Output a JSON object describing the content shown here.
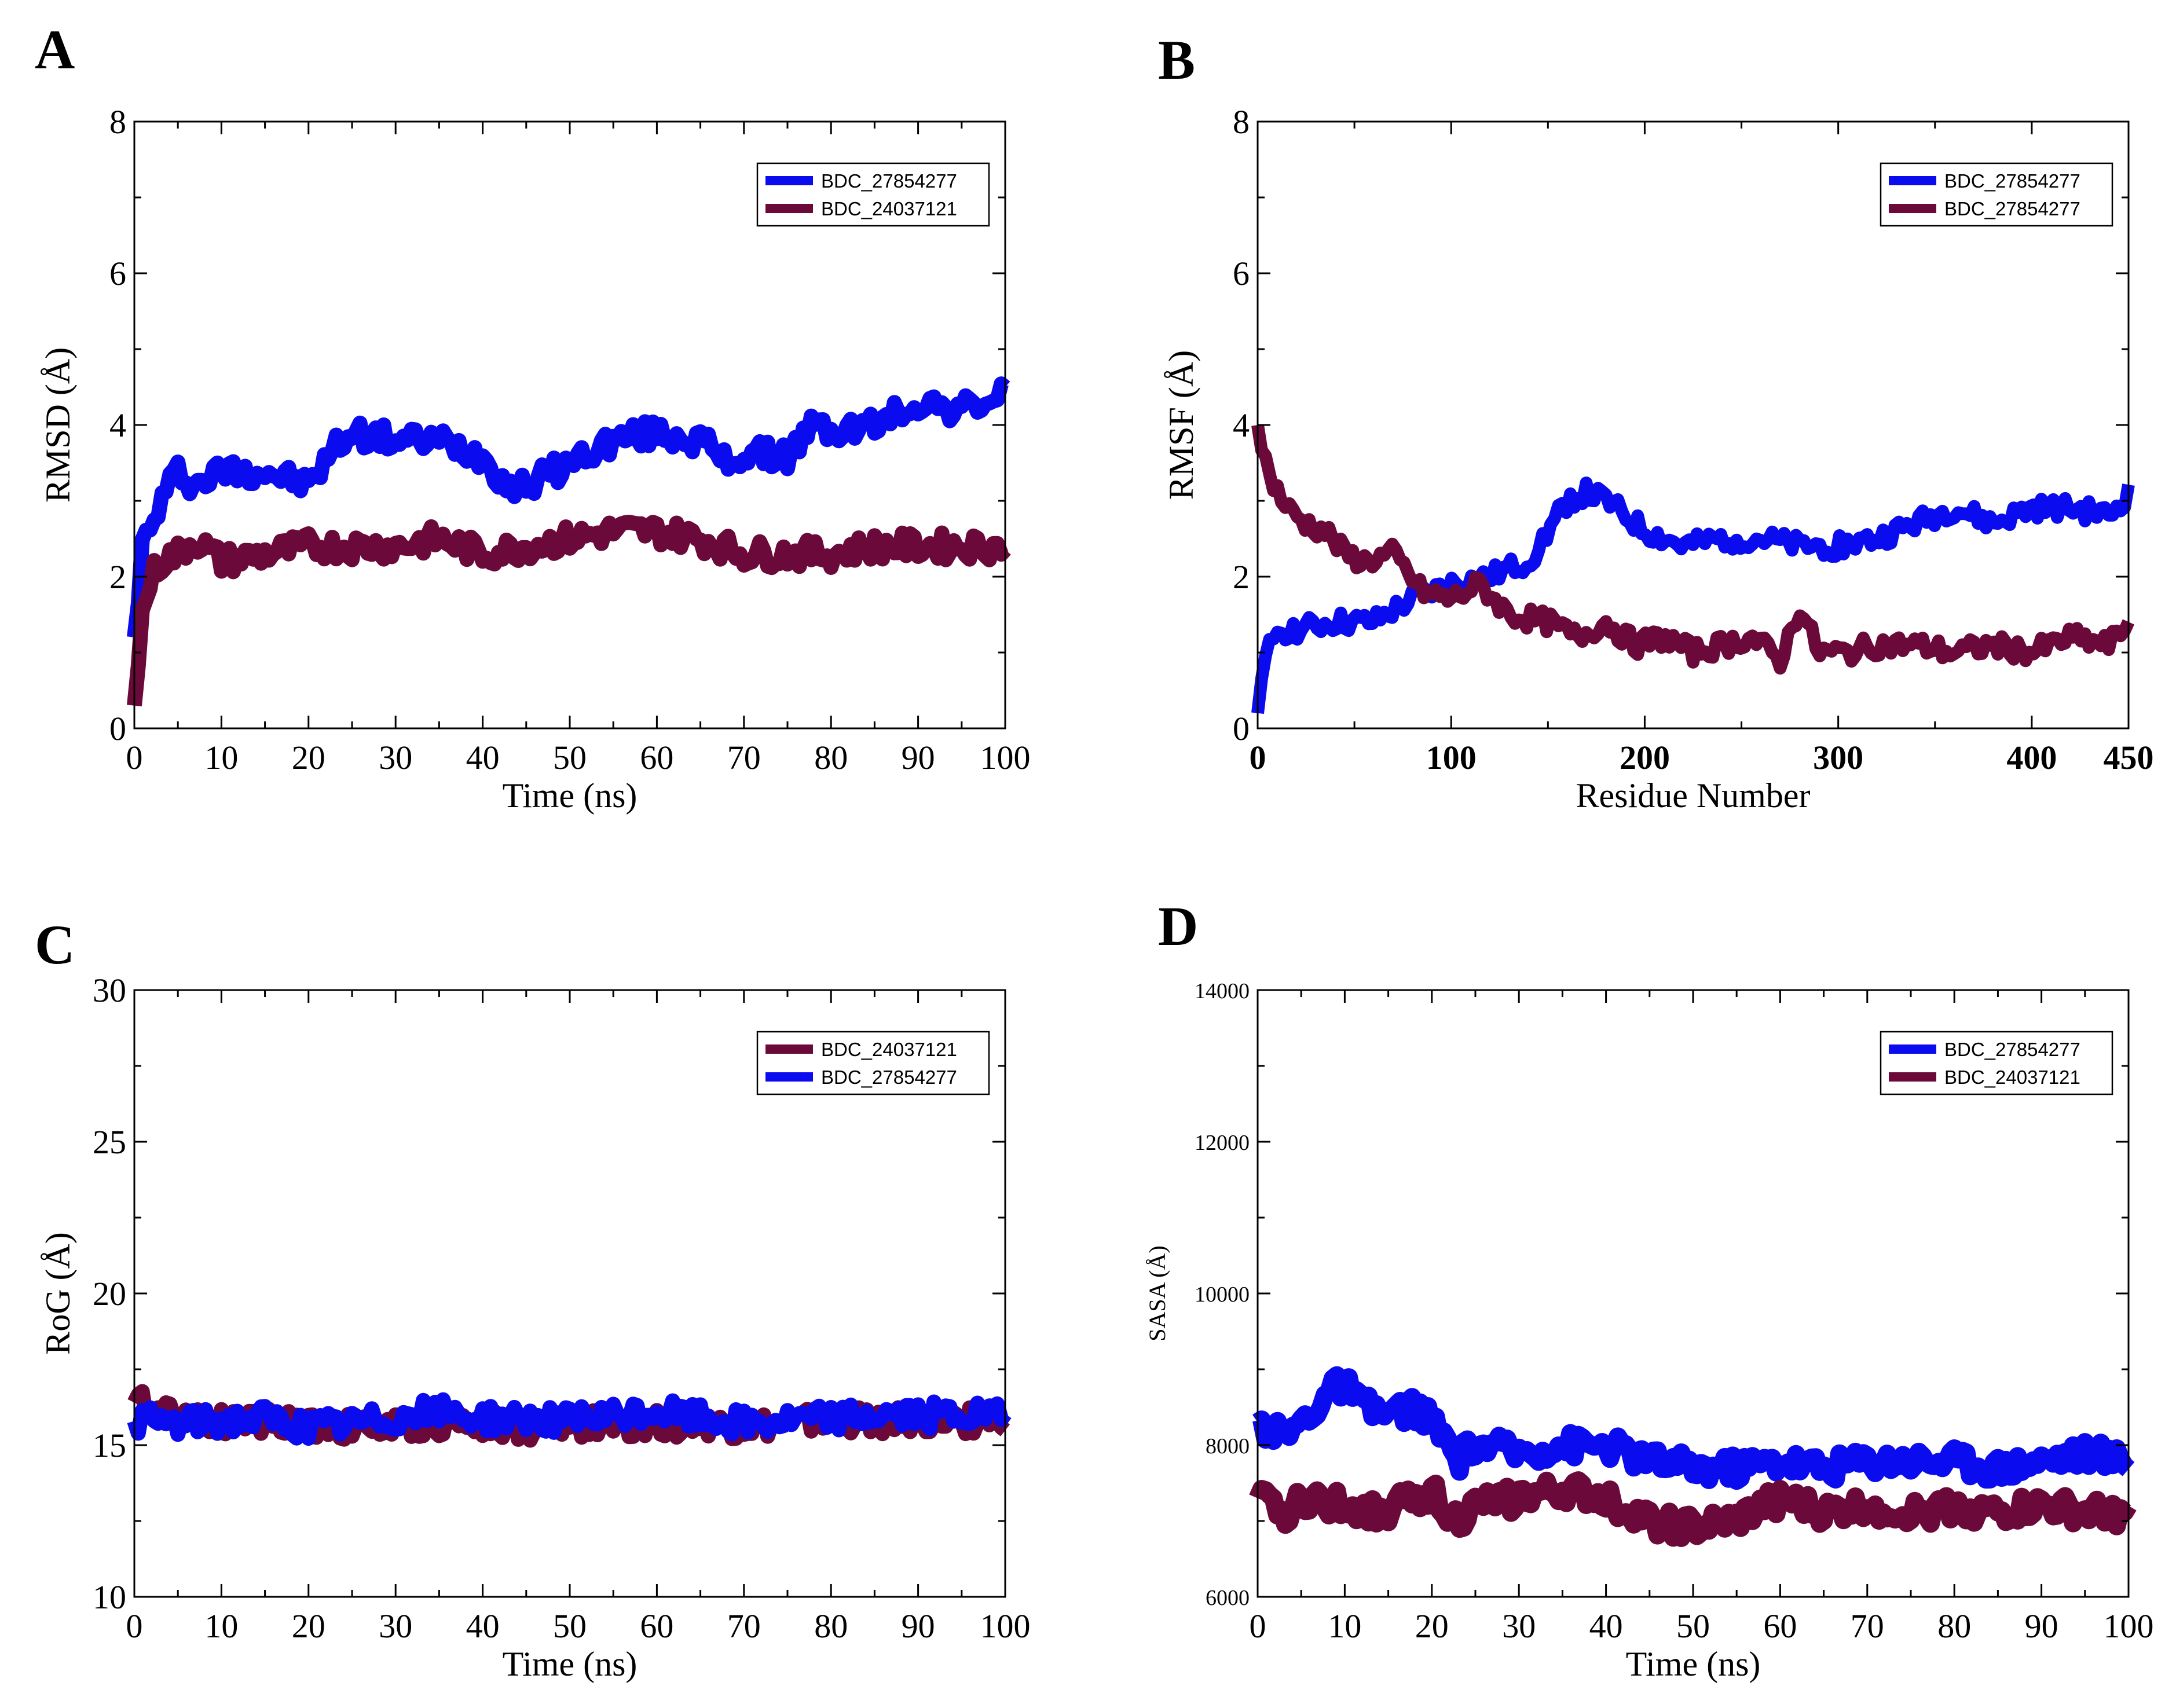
{
  "figure": {
    "letters": [
      "A",
      "B",
      "C",
      "D"
    ]
  },
  "chart_data": [
    {
      "panel": "A",
      "type": "line",
      "xlabel": "Time (ns)",
      "ylabel": "RMSD (Å)",
      "xlim": [
        0,
        100
      ],
      "ylim": [
        0,
        8
      ],
      "x_major_ticks": [
        0,
        10,
        20,
        30,
        40,
        50,
        60,
        70,
        80,
        90,
        100
      ],
      "y_major_ticks": [
        0,
        2,
        4,
        6,
        8
      ],
      "tick_bold": false,
      "legend": "top-right",
      "series": [
        {
          "name": "BDC_27854277",
          "color": "#0b0bf0",
          "x": [
            0,
            1,
            2,
            3,
            5,
            7,
            10,
            15,
            20,
            23,
            25,
            30,
            35,
            40,
            43,
            45,
            50,
            55,
            60,
            65,
            68,
            70,
            75,
            78,
            80,
            85,
            90,
            95,
            100
          ],
          "y": [
            1.2,
            2.5,
            2.6,
            3.0,
            3.4,
            3.2,
            3.4,
            3.4,
            3.2,
            3.7,
            3.9,
            3.8,
            3.8,
            3.6,
            3.2,
            3.2,
            3.5,
            3.8,
            3.9,
            3.8,
            3.5,
            3.6,
            3.6,
            4.0,
            3.9,
            4.0,
            4.3,
            4.2,
            4.4
          ]
        },
        {
          "name": "BDC_24037121",
          "color": "#6b0a3a",
          "x": [
            0,
            1,
            2,
            3,
            5,
            7,
            10,
            15,
            20,
            25,
            30,
            35,
            40,
            45,
            50,
            55,
            60,
            65,
            70,
            75,
            80,
            85,
            90,
            95,
            100
          ],
          "y": [
            0.3,
            1.6,
            2.0,
            2.2,
            2.3,
            2.5,
            2.2,
            2.3,
            2.4,
            2.4,
            2.4,
            2.5,
            2.3,
            2.4,
            2.5,
            2.6,
            2.6,
            2.5,
            2.3,
            2.3,
            2.3,
            2.4,
            2.4,
            2.4,
            2.4
          ]
        }
      ]
    },
    {
      "panel": "B",
      "type": "line",
      "xlabel": "Residue Number",
      "ylabel": "RMSF (Å)",
      "xlim": [
        0,
        450
      ],
      "ylim": [
        0,
        8
      ],
      "x_major_ticks": [
        0,
        100,
        200,
        300,
        400,
        450
      ],
      "y_major_ticks": [
        0,
        2,
        4,
        6,
        8
      ],
      "tick_bold": true,
      "legend": "top-right",
      "series": [
        {
          "name": "BDC_27854277",
          "color": "#0b0bf0",
          "x": [
            0,
            5,
            10,
            20,
            40,
            60,
            80,
            100,
            120,
            140,
            150,
            160,
            170,
            180,
            200,
            220,
            240,
            260,
            280,
            300,
            320,
            340,
            360,
            380,
            400,
            420,
            440,
            450
          ],
          "y": [
            0.2,
            1.0,
            1.3,
            1.3,
            1.4,
            1.4,
            1.7,
            1.9,
            2.0,
            2.2,
            2.6,
            3.0,
            3.1,
            3.0,
            2.6,
            2.4,
            2.5,
            2.5,
            2.4,
            2.4,
            2.5,
            2.7,
            2.9,
            2.7,
            2.9,
            2.9,
            2.8,
            3.1
          ]
        },
        {
          "name": "BDC_27854277",
          "color": "#6b0a3a",
          "x": [
            0,
            5,
            15,
            25,
            35,
            45,
            55,
            70,
            85,
            100,
            115,
            130,
            150,
            165,
            180,
            195,
            210,
            225,
            240,
            255,
            270,
            280,
            290,
            305,
            320,
            340,
            360,
            380,
            400,
            420,
            440,
            450
          ],
          "y": [
            4.0,
            3.4,
            2.9,
            2.7,
            2.6,
            2.3,
            2.2,
            2.3,
            1.8,
            1.7,
            1.9,
            1.5,
            1.4,
            1.2,
            1.4,
            1.1,
            1.2,
            1.0,
            1.1,
            1.2,
            0.9,
            1.6,
            1.0,
            1.0,
            1.1,
            1.1,
            1.0,
            1.1,
            1.0,
            1.2,
            1.1,
            1.4
          ]
        }
      ]
    },
    {
      "panel": "C",
      "type": "line",
      "xlabel": "Time (ns)",
      "ylabel": "RoG (Å)",
      "xlim": [
        0,
        100
      ],
      "ylim": [
        10,
        30
      ],
      "x_major_ticks": [
        0,
        10,
        20,
        30,
        40,
        50,
        60,
        70,
        80,
        90,
        100
      ],
      "y_major_ticks": [
        10,
        15,
        20,
        25,
        30
      ],
      "tick_bold": false,
      "legend": "top-right",
      "series": [
        {
          "name": "BDC_24037121",
          "color": "#6b0a3a",
          "x": [
            0,
            2,
            5,
            10,
            15,
            20,
            25,
            30,
            35,
            40,
            45,
            50,
            55,
            60,
            65,
            70,
            75,
            80,
            85,
            90,
            95,
            100
          ],
          "y": [
            16.4,
            16.3,
            16.1,
            15.8,
            15.8,
            15.7,
            15.6,
            15.6,
            15.7,
            15.7,
            15.6,
            15.7,
            15.7,
            15.7,
            15.7,
            15.6,
            15.7,
            15.8,
            15.8,
            15.8,
            15.8,
            15.9
          ]
        },
        {
          "name": "BDC_27854277",
          "color": "#0b0bf0",
          "x": [
            0,
            2,
            5,
            10,
            15,
            20,
            25,
            30,
            35,
            40,
            45,
            50,
            55,
            60,
            65,
            70,
            75,
            80,
            85,
            90,
            95,
            100
          ],
          "y": [
            15.8,
            15.8,
            15.7,
            15.8,
            15.9,
            15.6,
            15.7,
            15.9,
            16.1,
            15.9,
            15.9,
            15.8,
            15.9,
            16.1,
            15.9,
            15.7,
            15.8,
            15.9,
            16.0,
            16.0,
            16.0,
            15.9
          ]
        }
      ]
    },
    {
      "panel": "D",
      "type": "line",
      "xlabel": "Time (ns)",
      "ylabel": "SASA (Å)",
      "xlim": [
        0,
        100
      ],
      "ylim": [
        6000,
        14000
      ],
      "x_major_ticks": [
        0,
        10,
        20,
        30,
        40,
        50,
        60,
        70,
        80,
        90,
        100
      ],
      "y_major_ticks": [
        6000,
        8000,
        10000,
        12000,
        14000
      ],
      "tick_bold": false,
      "legend": "top-right",
      "series": [
        {
          "name": "BDC_27854277",
          "color": "#0b0bf0",
          "x": [
            0,
            3,
            6,
            8,
            10,
            12,
            15,
            18,
            20,
            23,
            25,
            30,
            35,
            40,
            45,
            50,
            55,
            60,
            65,
            70,
            75,
            80,
            85,
            90,
            95,
            100
          ],
          "y": [
            8300,
            8100,
            8400,
            8700,
            8800,
            8500,
            8400,
            8500,
            8300,
            7800,
            8000,
            7900,
            8000,
            8000,
            7800,
            7700,
            7700,
            7800,
            7700,
            7800,
            7800,
            7800,
            7700,
            7800,
            7900,
            7800
          ]
        },
        {
          "name": "BDC_24037121",
          "color": "#6b0a3a",
          "x": [
            0,
            3,
            6,
            10,
            14,
            18,
            20,
            23,
            25,
            30,
            35,
            40,
            45,
            50,
            55,
            60,
            65,
            70,
            75,
            80,
            85,
            90,
            95,
            100
          ],
          "y": [
            7300,
            7100,
            7300,
            7200,
            7100,
            7300,
            7400,
            7000,
            7200,
            7300,
            7400,
            7300,
            7000,
            6900,
            7000,
            7300,
            7100,
            7200,
            7100,
            7200,
            7100,
            7200,
            7100,
            7100
          ]
        }
      ]
    }
  ]
}
